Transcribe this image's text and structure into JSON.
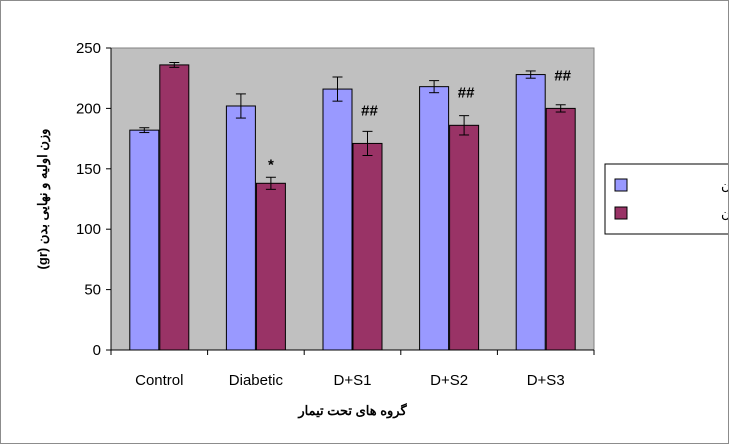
{
  "chart_data": {
    "type": "bar",
    "title": "",
    "categories": [
      "Control",
      "Diabetic",
      "D+S1",
      "D+S2",
      "D+S3"
    ],
    "series": [
      {
        "name": "وزن اولیه بدن",
        "values": [
          182,
          202,
          216,
          218,
          228
        ],
        "errors": [
          2,
          10,
          10,
          5,
          3
        ],
        "color": "#9999ff"
      },
      {
        "name": "وزن نهایی بدن",
        "values": [
          236,
          138,
          171,
          186,
          200
        ],
        "errors": [
          2,
          5,
          10,
          8,
          3
        ],
        "color": "#993366"
      }
    ],
    "annotations": [
      {
        "category": "Diabetic",
        "series": 1,
        "text": "*"
      },
      {
        "category": "D+S1",
        "series": 1,
        "text": "##"
      },
      {
        "category": "D+S2",
        "series": 1,
        "text": "##"
      },
      {
        "category": "D+S3",
        "series": 1,
        "text": "##"
      }
    ],
    "xlabel": "گروه های تحت تیمار",
    "ylabel": "وزن اولیه و نهایی بدن (gr)",
    "ylim": [
      0,
      250
    ],
    "yticks": [
      0,
      50,
      100,
      150,
      200,
      250
    ],
    "grid": false,
    "legend_position": "right",
    "plot_background": "#c0c0c0"
  }
}
